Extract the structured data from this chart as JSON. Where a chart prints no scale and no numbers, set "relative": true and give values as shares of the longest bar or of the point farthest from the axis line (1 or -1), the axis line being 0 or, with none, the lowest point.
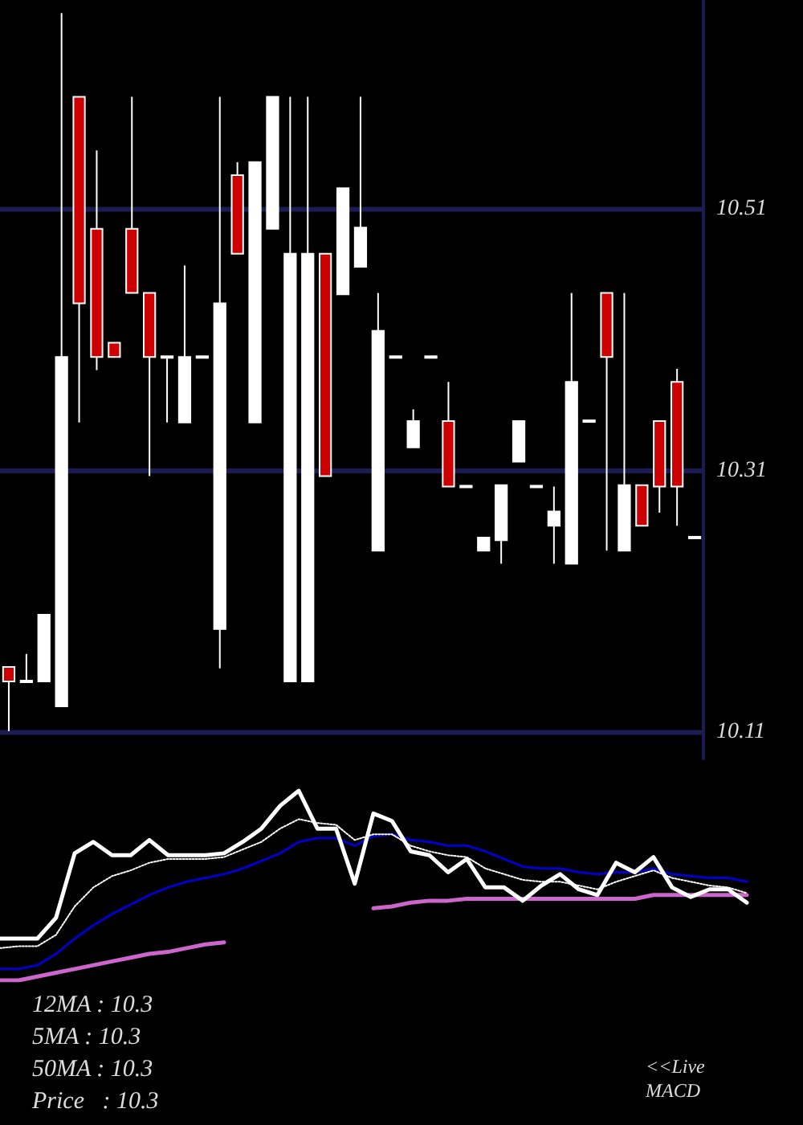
{
  "chart_data": [
    {
      "type": "candlestick",
      "categories": [
        null,
        null,
        null,
        null,
        null,
        null,
        null,
        null,
        null,
        null,
        null,
        null,
        null,
        null,
        null,
        null,
        null,
        null,
        null,
        null,
        null,
        null,
        null,
        null,
        null,
        null,
        null,
        null,
        null,
        null,
        null,
        null,
        null,
        null,
        null,
        null,
        null,
        null,
        null,
        null
      ],
      "ohlc": [
        [
          10.16,
          10.16,
          10.111,
          10.149
        ],
        [
          10.149,
          10.17,
          10.149,
          10.149
        ],
        [
          10.149,
          10.2,
          10.149,
          10.2
        ],
        [
          10.13,
          10.66,
          10.13,
          10.397
        ],
        [
          10.596,
          10.596,
          10.347,
          10.438
        ],
        [
          10.495,
          10.555,
          10.387,
          10.397
        ],
        [
          10.408,
          10.408,
          10.397,
          10.397
        ],
        [
          10.495,
          10.596,
          10.446,
          10.446
        ],
        [
          10.446,
          10.446,
          10.306,
          10.397
        ],
        [
          10.397,
          10.397,
          10.347,
          10.397
        ],
        [
          10.347,
          10.467,
          10.347,
          10.397
        ],
        [
          10.397,
          10.397,
          10.397,
          10.397
        ],
        [
          10.189,
          10.596,
          10.159,
          10.438
        ],
        [
          10.536,
          10.546,
          10.476,
          10.476
        ],
        [
          10.347,
          10.546,
          10.347,
          10.546
        ],
        [
          10.495,
          10.596,
          10.495,
          10.596
        ],
        [
          10.149,
          10.596,
          10.149,
          10.476
        ],
        [
          10.149,
          10.596,
          10.149,
          10.476
        ],
        [
          10.476,
          10.476,
          10.306,
          10.306
        ],
        [
          10.445,
          10.526,
          10.445,
          10.526
        ],
        [
          10.466,
          10.596,
          10.466,
          10.496
        ],
        [
          10.249,
          10.446,
          10.249,
          10.417
        ],
        [
          10.397,
          10.397,
          10.397,
          10.397
        ],
        [
          10.328,
          10.357,
          10.328,
          10.348
        ],
        [
          10.397,
          10.397,
          10.397,
          10.397
        ],
        [
          10.348,
          10.378,
          10.298,
          10.298
        ],
        [
          10.298,
          10.298,
          10.298,
          10.298
        ],
        [
          10.249,
          10.259,
          10.249,
          10.259
        ],
        [
          10.257,
          10.299,
          10.239,
          10.299
        ],
        [
          10.317,
          10.348,
          10.317,
          10.348
        ],
        [
          10.298,
          10.298,
          10.298,
          10.298
        ],
        [
          10.268,
          10.298,
          10.239,
          10.279
        ],
        [
          10.239,
          10.446,
          10.239,
          10.378
        ],
        [
          10.348,
          10.348,
          10.348,
          10.348
        ],
        [
          10.446,
          10.446,
          10.249,
          10.397
        ],
        [
          10.249,
          10.446,
          10.249,
          10.299
        ],
        [
          10.299,
          10.299,
          10.268,
          10.268
        ],
        [
          10.348,
          10.348,
          10.278,
          10.298
        ],
        [
          10.378,
          10.388,
          10.268,
          10.298
        ],
        [
          10.259,
          10.259,
          10.259,
          10.259
        ]
      ],
      "colors": [
        "#cc0000",
        "#ffffff",
        "#ffffff",
        "#ffffff",
        "#cc0000",
        "#cc0000",
        "#cc0000",
        "#cc0000",
        "#cc0000",
        "#ffffff",
        "#ffffff",
        "#ffffff",
        "#ffffff",
        "#cc0000",
        "#ffffff",
        "#ffffff",
        "#ffffff",
        "#ffffff",
        "#cc0000",
        "#ffffff",
        "#ffffff",
        "#ffffff",
        "#ffffff",
        "#ffffff",
        "#ffffff",
        "#cc0000",
        "#ffffff",
        "#ffffff",
        "#ffffff",
        "#ffffff",
        "#ffffff",
        "#ffffff",
        "#ffffff",
        "#ffffff",
        "#cc0000",
        "#ffffff",
        "#cc0000",
        "#cc0000",
        "#cc0000",
        "#ffffff"
      ],
      "ylim": [
        10.09,
        10.67
      ],
      "yticks": [
        10.11,
        10.31,
        10.51
      ],
      "grid": "y"
    },
    {
      "type": "line",
      "relative": true,
      "marker": "none",
      "categories": [
        null,
        null,
        null,
        null,
        null,
        null,
        null,
        null,
        null,
        null,
        null,
        null,
        null,
        null,
        null,
        null,
        null,
        null,
        null,
        null,
        null,
        null,
        null,
        null,
        null,
        null,
        null,
        null,
        null,
        null,
        null,
        null,
        null,
        null,
        null,
        null,
        null,
        null,
        null,
        null,
        null
      ],
      "series": [
        {
          "color": "#cc66cc",
          "line_style": "solid",
          "values": [
            0,
            0,
            0.02,
            0.04,
            0.06,
            0.08,
            0.1,
            0.12,
            0.14,
            0.15,
            0.17,
            0.19,
            0.2,
            null,
            null,
            null,
            null,
            null,
            null,
            null,
            0.38,
            0.39,
            0.41,
            0.42,
            0.42,
            0.43,
            0.43,
            0.43,
            0.43,
            0.43,
            0.43,
            0.43,
            0.43,
            0.43,
            0.43,
            0.45,
            0.45,
            0.45,
            0.45,
            0.45,
            0.45
          ]
        },
        {
          "color": "#0000cc",
          "line_style": "solid",
          "values": [
            0.06,
            0.06,
            0.08,
            0.14,
            0.22,
            0.29,
            0.35,
            0.4,
            0.45,
            0.49,
            0.52,
            0.54,
            0.56,
            0.59,
            0.63,
            0.67,
            0.73,
            0.75,
            0.75,
            0.71,
            0.76,
            0.77,
            0.74,
            0.73,
            0.71,
            0.71,
            0.68,
            0.64,
            0.6,
            0.59,
            0.59,
            0.57,
            0.56,
            0.57,
            0.57,
            0.59,
            0.56,
            0.55,
            0.54,
            0.54,
            0.52
          ]
        },
        {
          "color": "#ffffff",
          "line_style": "dotted",
          "values": [
            0.17,
            0.18,
            0.18,
            0.24,
            0.39,
            0.49,
            0.55,
            0.58,
            0.62,
            0.64,
            0.64,
            0.64,
            0.65,
            0.69,
            0.73,
            0.8,
            0.85,
            0.83,
            0.82,
            0.74,
            0.77,
            0.77,
            0.71,
            0.68,
            0.66,
            0.65,
            0.59,
            0.56,
            0.53,
            0.52,
            0.52,
            0.5,
            0.48,
            0.52,
            0.55,
            0.58,
            0.54,
            0.52,
            0.5,
            0.49,
            0.46
          ]
        },
        {
          "color": "#ffffff",
          "line_style": "solid",
          "values": [
            0.22,
            0.22,
            0.22,
            0.33,
            0.67,
            0.73,
            0.66,
            0.66,
            0.74,
            0.66,
            0.66,
            0.66,
            0.67,
            0.73,
            0.8,
            0.92,
            1.0,
            0.8,
            0.8,
            0.51,
            0.88,
            0.84,
            0.68,
            0.66,
            0.57,
            0.64,
            0.49,
            0.49,
            0.42,
            0.5,
            0.56,
            0.48,
            0.45,
            0.62,
            0.57,
            0.65,
            0.49,
            0.44,
            0.48,
            0.48,
            0.41
          ]
        }
      ],
      "annotations": [
        "12MA : 10.3",
        "5MA : 10.3",
        "50MA : 10.3",
        "Price   : 10.3",
        "<<Live MACD"
      ]
    }
  ]
}
